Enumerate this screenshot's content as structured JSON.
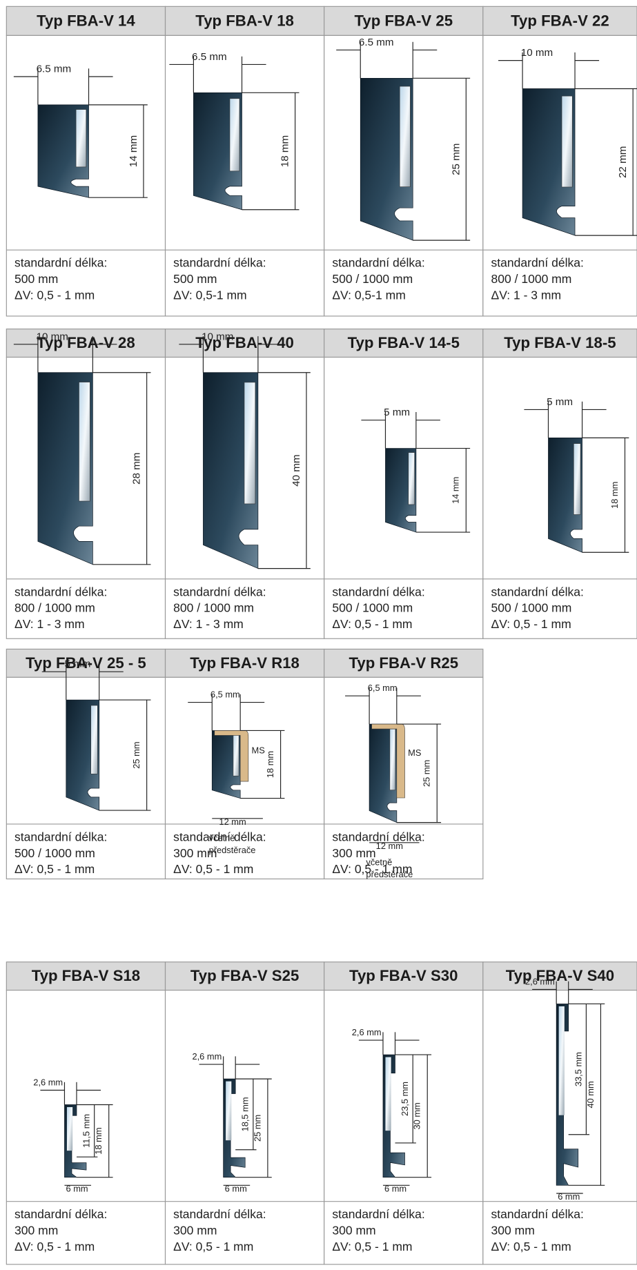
{
  "sections": [
    {
      "panels": [
        {
          "title": "Typ FBA-V 14",
          "width_label": "6.5 mm",
          "height_label": "14 mm",
          "info": [
            "standardní délka:",
            "500 mm",
            "ΔV:  0,5 - 1 mm"
          ]
        },
        {
          "title": "Typ FBA-V 18",
          "width_label": "6.5 mm",
          "height_label": "18 mm",
          "info": [
            "standardní délka:",
            "500 mm",
            "ΔV:  0,5-1 mm"
          ]
        },
        {
          "title": "Typ FBA-V 25",
          "width_label": "6.5 mm",
          "height_label": "25 mm",
          "info": [
            "standardní délka:",
            "500 / 1000 mm",
            "ΔV:  0,5-1 mm"
          ]
        },
        {
          "title": "Typ FBA-V 22",
          "width_label": "10 mm",
          "height_label": "22 mm",
          "info": [
            "standardní délka:",
            "800 / 1000 mm",
            "ΔV:  1 - 3 mm"
          ]
        }
      ]
    },
    {
      "panels": [
        {
          "title": "Typ FBA-V 28",
          "width_label": "10 mm",
          "height_label": "28 mm",
          "info": [
            "standardní délka:",
            "800 / 1000 mm",
            "ΔV:  1 - 3 mm"
          ]
        },
        {
          "title": "Typ FBA-V 40",
          "width_label": "10 mm",
          "height_label": "40 mm",
          "info": [
            "standardní délka:",
            "800 / 1000 mm",
            "ΔV:  1 - 3 mm"
          ]
        },
        {
          "title": "Typ FBA-V 14-5",
          "width_label": "5 mm",
          "height_label": "14 mm",
          "info": [
            "standardní délka:",
            "500 / 1000 mm",
            "ΔV:  0,5 - 1 mm"
          ]
        },
        {
          "title": "Typ FBA-V 18-5",
          "width_label": "5 mm",
          "height_label": "18 mm",
          "info": [
            "standardní délka:",
            "500 / 1000 mm",
            "ΔV:  0,5 - 1 mm"
          ]
        }
      ]
    },
    {
      "panels": [
        {
          "title": "Typ FBA-V 25 - 5",
          "width_label": "5 mm",
          "height_label": "25 mm",
          "info": [
            "standardní délka:",
            "500 / 1000 mm",
            "ΔV:  0,5 - 1 mm"
          ]
        },
        {
          "title": "Typ FBA-V R18",
          "width_label": "6,5 mm",
          "height_label": "18 mm",
          "material_label": "MS",
          "bottom_label": "12 mm",
          "note": [
            "včetně",
            "předstěrače"
          ],
          "info": [
            "standardní délka:",
            "300 mm",
            "ΔV:  0,5 - 1 mm"
          ]
        },
        {
          "title": "Typ FBA-V R25",
          "width_label": "6,5 mm",
          "height_label": "25 mm",
          "material_label": "MS",
          "bottom_label": "12 mm",
          "note": [
            "včetně",
            "předstěrače"
          ],
          "info": [
            "standardní délka:",
            "300 mm",
            "ΔV:  0,5 - 1 mm"
          ]
        }
      ]
    },
    {
      "panels": [
        {
          "title": "Typ FBA-V S18",
          "width_label": "2,6 mm",
          "inner_height_label": "11,5 mm",
          "height_label": "18 mm",
          "bottom_label": "6 mm",
          "info": [
            "standardní délka:",
            "300 mm",
            "ΔV:  0,5 - 1 mm"
          ]
        },
        {
          "title": "Typ FBA-V S25",
          "width_label": "2,6 mm",
          "inner_height_label": "18,5 mm",
          "height_label": "25 mm",
          "bottom_label": "6 mm",
          "info": [
            "standardní délka:",
            "300 mm",
            "ΔV:  0,5 - 1 mm"
          ]
        },
        {
          "title": "Typ FBA-V S30",
          "width_label": "2,6 mm",
          "inner_height_label": "23,5 mm",
          "height_label": "30 mm",
          "bottom_label": "6 mm",
          "info": [
            "standardní délka:",
            "300 mm",
            "ΔV:  0,5 - 1 mm"
          ]
        },
        {
          "title": "Typ FBA-V S40",
          "width_label": "2,6 mm",
          "inner_height_label": "33,5 mm",
          "height_label": "40 mm",
          "bottom_label": "6 mm",
          "info": [
            "standardní délka:",
            "300 mm",
            "ΔV:  0,5 - 1 mm"
          ]
        }
      ]
    }
  ]
}
